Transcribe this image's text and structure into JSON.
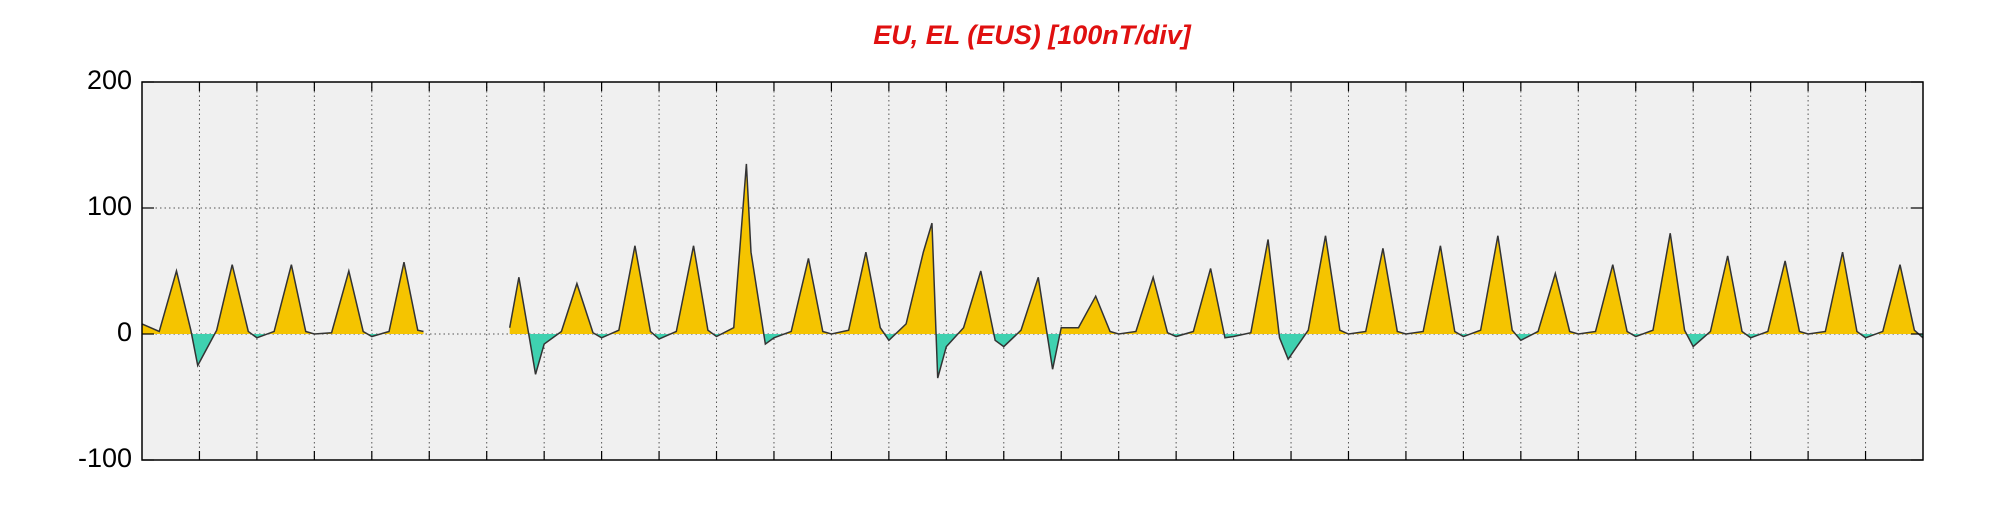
{
  "chart_data": {
    "type": "area",
    "title": "EU, EL (EUS)  [100nT/div]",
    "x": [
      0,
      0.3,
      0.6,
      0.85,
      0.97,
      1.3,
      1.57,
      1.85,
      2.0,
      2.3,
      2.6,
      2.85,
      3.0,
      3.3,
      3.6,
      3.85,
      4.0,
      4.3,
      4.56,
      4.8,
      4.9,
      5.5,
      6.4,
      6.56,
      6.75,
      6.85,
      7.0,
      7.3,
      7.57,
      7.85,
      8.0,
      8.3,
      8.58,
      8.85,
      9.0,
      9.3,
      9.6,
      9.85,
      10.0,
      10.3,
      10.52,
      10.6,
      10.85,
      11.0,
      11.3,
      11.6,
      11.85,
      12.0,
      12.3,
      12.6,
      12.85,
      13.0,
      13.3,
      13.6,
      13.75,
      13.85,
      14.0,
      14.3,
      14.6,
      14.85,
      15.0,
      15.3,
      15.6,
      15.85,
      16.0,
      16.3,
      16.6,
      16.85,
      17.0,
      17.3,
      17.6,
      17.85,
      18.0,
      18.3,
      18.6,
      18.85,
      19.0,
      19.3,
      19.6,
      19.8,
      19.95,
      20.3,
      20.6,
      20.85,
      21.0,
      21.3,
      21.6,
      21.85,
      22.0,
      22.3,
      22.6,
      22.85,
      23.0,
      23.3,
      23.6,
      23.85,
      24.0,
      24.3,
      24.6,
      24.85,
      25.0,
      25.3,
      25.6,
      25.85,
      26.0,
      26.3,
      26.6,
      26.85,
      27.0,
      27.3,
      27.6,
      27.85,
      28.0,
      28.3,
      28.6,
      28.85,
      29.0,
      29.3,
      29.6,
      29.85,
      30.0,
      30.3,
      30.6,
      30.85,
      31.0
    ],
    "values": [
      8,
      2,
      50,
      3,
      -25,
      3,
      55,
      2,
      -3,
      2,
      55,
      2,
      0,
      1,
      50,
      2,
      -2,
      2,
      57,
      3,
      2,
      null,
      5,
      45,
      -5,
      -32,
      -8,
      2,
      40,
      1,
      -3,
      3,
      70,
      2,
      -4,
      2,
      70,
      3,
      -2,
      5,
      135,
      65,
      -8,
      -3,
      2,
      60,
      2,
      0,
      3,
      65,
      5,
      -5,
      8,
      65,
      88,
      -35,
      -10,
      5,
      50,
      -5,
      -10,
      3,
      45,
      -28,
      5,
      5,
      30,
      2,
      0,
      2,
      45,
      1,
      -2,
      2,
      52,
      -3,
      -2,
      1,
      75,
      -3,
      -20,
      3,
      78,
      3,
      0,
      2,
      68,
      2,
      0,
      2,
      70,
      2,
      -2,
      3,
      78,
      3,
      -5,
      2,
      48,
      2,
      0,
      2,
      55,
      2,
      -2,
      3,
      80,
      3,
      -10,
      2,
      62,
      2,
      -3,
      2,
      58,
      2,
      0,
      2,
      65,
      2,
      -3,
      2,
      55,
      3,
      -3
    ],
    "color": "#333333",
    "fill_positive": "#f5c400",
    "fill_negative": "#3fd1b0",
    "xlim": [
      0,
      31
    ],
    "xticks": [
      1,
      2,
      3,
      4,
      5,
      6,
      7,
      8,
      9,
      10,
      11,
      12,
      13,
      14,
      15,
      16,
      17,
      18,
      19,
      20,
      21,
      22,
      23,
      24,
      25,
      26,
      27,
      28,
      29,
      30
    ],
    "ylim": [
      -100,
      200
    ],
    "yticks": [
      -100,
      0,
      100,
      200
    ],
    "grid": true
  }
}
